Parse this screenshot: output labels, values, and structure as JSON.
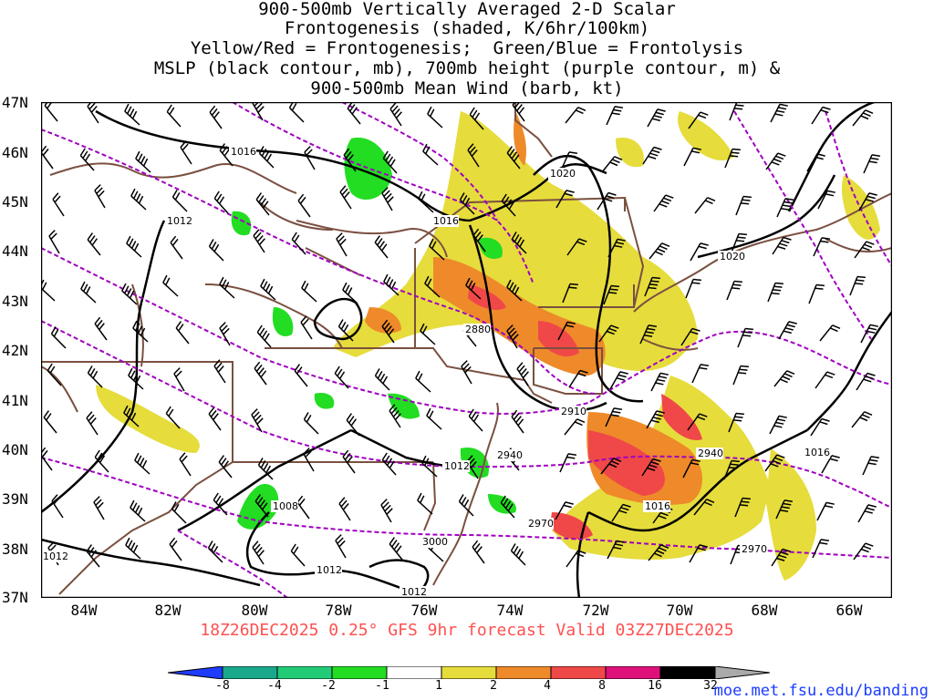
{
  "title_lines": [
    "900-500mb Vertically Averaged 2-D Scalar",
    "Frontogenesis (shaded, K/6hr/100km)",
    "Yellow/Red = Frontogenesis;  Green/Blue = Frontolysis",
    "MSLP (black contour, mb), 700mb height (purple contour, m) &",
    "900-500mb Mean Wind (barb, kt)"
  ],
  "lat_labels": [
    "47N",
    "46N",
    "45N",
    "44N",
    "43N",
    "42N",
    "41N",
    "40N",
    "39N",
    "38N",
    "37N"
  ],
  "lon_labels": [
    "84W",
    "82W",
    "80W",
    "78W",
    "76W",
    "74W",
    "72W",
    "70W",
    "68W",
    "66W"
  ],
  "valid_text": "18Z26DEC2025 0.25° GFS 9hr forecast Valid 03Z27DEC2025",
  "credit": "moe.met.fsu.edu/banding",
  "colorbar": {
    "ticks": [
      "-8",
      "-4",
      "-2",
      "-1",
      "1",
      "2",
      "4",
      "8",
      "16",
      "32"
    ],
    "colors": [
      "#1f3cff",
      "#1aa88c",
      "#22cc77",
      "#22dd22",
      "#ffffff",
      "#e6dc3c",
      "#ee8a2a",
      "#f04848",
      "#e0107a",
      "#000000",
      "#aaaaaa"
    ]
  },
  "contour_labels": {
    "mslp": [
      "1016",
      "1012",
      "1020",
      "1016",
      "1020",
      "1012",
      "1008",
      "1012",
      "1012",
      "1016",
      "1016",
      "1012"
    ],
    "height": [
      "2880",
      "2910",
      "2940",
      "2940",
      "2970",
      "3000",
      "2970"
    ]
  },
  "colors": {
    "state_lines": "#7a5040",
    "mslp": "#000000",
    "height": "#a000c0",
    "barb": "#000000"
  }
}
